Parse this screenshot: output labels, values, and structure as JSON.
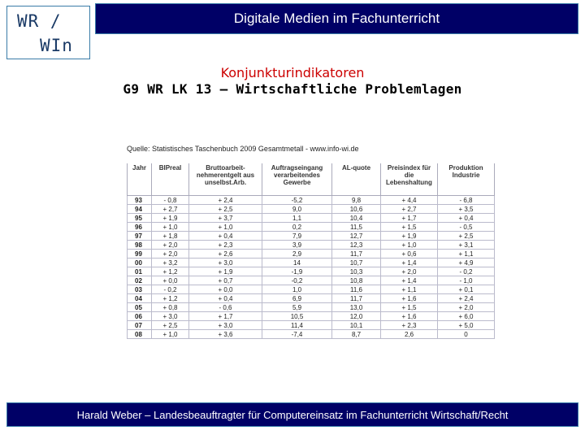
{
  "logo": {
    "line1": "WR /",
    "line2": "WIn"
  },
  "header": {
    "title": "Digitale Medien im Fachunterricht"
  },
  "subtitle": {
    "line1": "Konjunkturindikatoren",
    "line2": "G9 WR LK 13 – Wirtschaftliche Problemlagen"
  },
  "table": {
    "source": "Quelle: Statistisches Taschenbuch 2009 Gesamtmetall - www.info-wi.de",
    "headers": [
      "Jahr",
      "BIPreal",
      "Bruttoarbeit-nehmerentgelt aus unselbst.Arb.",
      "Auftragseingang verarbeitendes Gewerbe",
      "AL-quote",
      "Preisindex für die Lebenshaltung",
      "Produktion Industrie"
    ],
    "rows": [
      [
        "93",
        "- 0,8",
        "+ 2,4",
        "-5,2",
        "9,8",
        "+ 4,4",
        "- 6,8"
      ],
      [
        "94",
        "+ 2,7",
        "+ 2,5",
        "9,0",
        "10,6",
        "+ 2,7",
        "+ 3,5"
      ],
      [
        "95",
        "+ 1,9",
        "+ 3,7",
        "1,1",
        "10,4",
        "+ 1,7",
        "+ 0,4"
      ],
      [
        "96",
        "+ 1,0",
        "+ 1,0",
        "0,2",
        "11,5",
        "+ 1,5",
        "- 0,5"
      ],
      [
        "97",
        "+ 1,8",
        "+ 0,4",
        "7,9",
        "12,7",
        "+ 1,9",
        "+ 2,5"
      ],
      [
        "98",
        "+ 2,0",
        "+ 2,3",
        "3,9",
        "12,3",
        "+ 1,0",
        "+ 3,1"
      ],
      [
        "99",
        "+ 2,0",
        "+ 2,6",
        "2,9",
        "11,7",
        "+ 0,6",
        "+ 1,1"
      ],
      [
        "00",
        "+ 3,2",
        "+ 3,0",
        "14",
        "10,7",
        "+ 1,4",
        "+ 4,9"
      ],
      [
        "01",
        "+ 1,2",
        "+ 1,9",
        "-1,9",
        "10,3",
        "+ 2,0",
        "- 0,2"
      ],
      [
        "02",
        "+ 0,0",
        "+ 0,7",
        "-0,2",
        "10,8",
        "+ 1,4",
        "- 1,0"
      ],
      [
        "03",
        "- 0,2",
        "+ 0,0",
        "1,0",
        "11,6",
        "+ 1,1",
        "+ 0,1"
      ],
      [
        "04",
        "+ 1,2",
        "+ 0,4",
        "6,9",
        "11,7",
        "+ 1,6",
        "+ 2,4"
      ],
      [
        "05",
        "+ 0,8",
        "- 0,6",
        "5,9",
        "13,0",
        "+ 1,5",
        "+ 2,0"
      ],
      [
        "06",
        "+ 3,0",
        "+ 1,7",
        "10,5",
        "12,0",
        "+ 1,6",
        "+ 6,0"
      ],
      [
        "07",
        "+ 2,5",
        "+ 3,0",
        "11,4",
        "10,1",
        "+ 2,3",
        "+ 5,0"
      ],
      [
        "08",
        "+ 1,0",
        "+ 3,6",
        "-7,4",
        "8,7",
        "2,6",
        "0"
      ]
    ]
  },
  "footer": {
    "text": "Harald Weber – Landesbeauftragter für Computereinsatz im Fachunterricht Wirtschaft/Recht"
  }
}
